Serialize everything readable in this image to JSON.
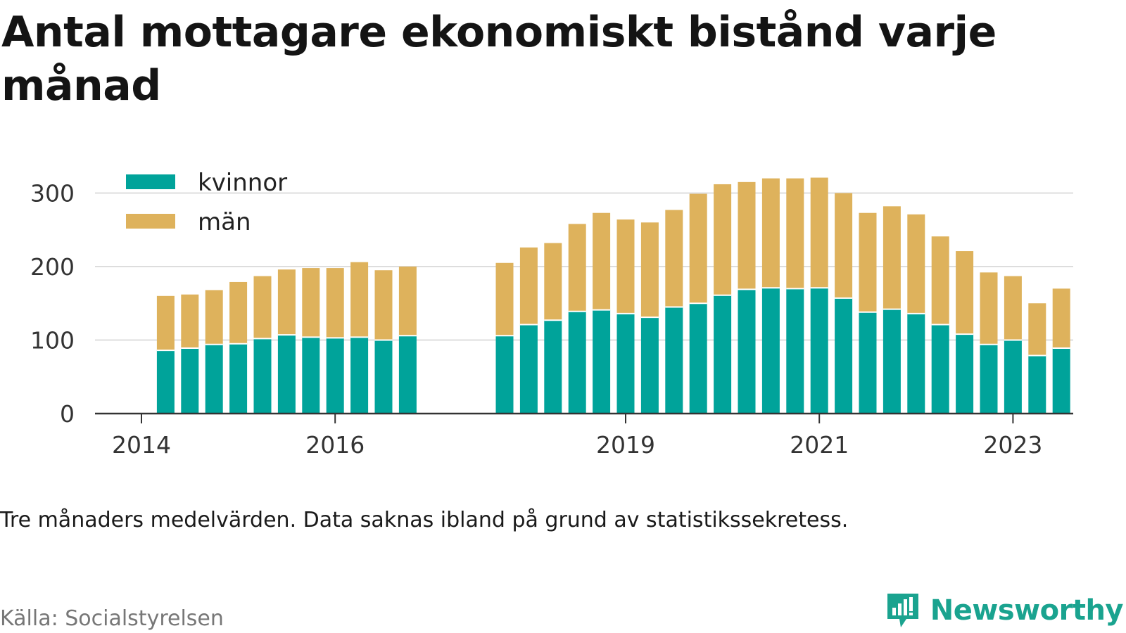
{
  "title": "Antal mottagare ekonomiskt bistånd varje månad",
  "note": "Tre månaders medelvärden. Data saknas ibland på grund av statistikssekretess.",
  "source": "Källa: Socialstyrelsen",
  "brand": {
    "name": "Newsworthy",
    "icon": "newsworthy-chart-icon"
  },
  "colors": {
    "kvinnor": "#00a39a",
    "man": "#deb25c",
    "grid": "#dddddd",
    "axis": "#333333",
    "brand": "#1aa38f"
  },
  "chart_data": {
    "type": "bar",
    "stacked": true,
    "x_unit": "quarter",
    "x": [
      "2014-Q2",
      "2014-Q3",
      "2014-Q4",
      "2015-Q1",
      "2015-Q2",
      "2015-Q3",
      "2015-Q4",
      "2016-Q1",
      "2016-Q2",
      "2016-Q3",
      "2016-Q4",
      "2017-Q1",
      "2017-Q4",
      "2018-Q1",
      "2018-Q2",
      "2018-Q3",
      "2018-Q4",
      "2019-Q1",
      "2019-Q2",
      "2019-Q3",
      "2019-Q4",
      "2020-Q1",
      "2020-Q2",
      "2020-Q3",
      "2020-Q4",
      "2021-Q1",
      "2021-Q2",
      "2021-Q3",
      "2021-Q4",
      "2022-Q1",
      "2022-Q2",
      "2022-Q3",
      "2022-Q4",
      "2023-Q1",
      "2023-Q2",
      "2023-Q3"
    ],
    "series": [
      {
        "name": "kvinnor",
        "values": [
          86,
          89,
          94,
          95,
          102,
          107,
          104,
          103,
          104,
          100,
          106,
          null,
          106,
          121,
          127,
          139,
          141,
          136,
          131,
          145,
          150,
          161,
          169,
          171,
          170,
          171,
          157,
          138,
          142,
          136,
          121,
          108,
          94,
          100,
          79,
          89
        ]
      },
      {
        "name": "män",
        "values": [
          74,
          73,
          74,
          84,
          85,
          89,
          94,
          95,
          102,
          95,
          94,
          null,
          99,
          105,
          105,
          119,
          132,
          128,
          129,
          132,
          149,
          151,
          146,
          149,
          150,
          150,
          143,
          135,
          140,
          135,
          120,
          113,
          98,
          87,
          71,
          81
        ]
      }
    ],
    "x_ticks": [
      "2014",
      "2016",
      "2019",
      "2021",
      "2023"
    ],
    "x_tick_positions": [
      "2014-Q1",
      "2016-Q1",
      "2019-Q1",
      "2021-Q1",
      "2023-Q1"
    ],
    "y_ticks": [
      0,
      100,
      200,
      300
    ],
    "ylim": [
      0,
      330
    ],
    "legend": {
      "position": "top-left",
      "entries": [
        "kvinnor",
        "män"
      ]
    },
    "grid": true
  }
}
